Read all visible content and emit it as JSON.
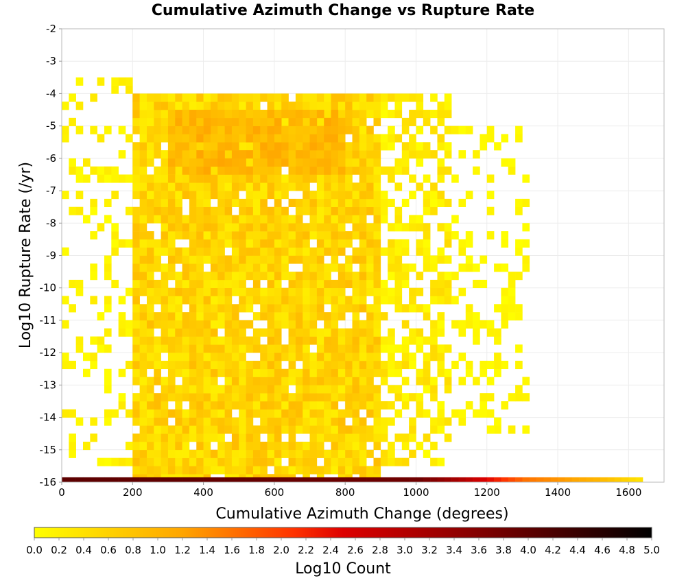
{
  "chart_data": {
    "type": "heatmap",
    "title": "Cumulative Azimuth Change vs Rupture Rate",
    "xlabel": "Cumulative Azimuth Change (degrees)",
    "ylabel": "Log10 Rupture Rate (/yr)",
    "xlim": [
      0,
      1700
    ],
    "ylim": [
      -16,
      -2
    ],
    "x_ticks": [
      "0",
      "200",
      "400",
      "600",
      "800",
      "1000",
      "1200",
      "1400",
      "1600"
    ],
    "y_ticks": [
      "-2",
      "-3",
      "-4",
      "-5",
      "-6",
      "-7",
      "-8",
      "-9",
      "-10",
      "-11",
      "-12",
      "-13",
      "-14",
      "-15",
      "-16"
    ],
    "grid": true,
    "colorbar": {
      "label": "Log10 Count",
      "range": [
        0.0,
        5.0
      ],
      "ticks": [
        "0.0",
        "0.2",
        "0.4",
        "0.6",
        "0.8",
        "1.0",
        "1.2",
        "1.4",
        "1.6",
        "1.8",
        "2.0",
        "2.2",
        "2.4",
        "2.6",
        "2.8",
        "3.0",
        "3.2",
        "3.4",
        "3.6",
        "3.8",
        "4.0",
        "4.2",
        "4.4",
        "4.6",
        "4.8",
        "5.0"
      ],
      "colormap": [
        "#ffff00",
        "#ffa500",
        "#ff0000",
        "#8b0000",
        "#000000"
      ]
    },
    "bin_width_x": 20,
    "bin_height_y": 0.25,
    "density_regions": [
      {
        "x_range": [
          0,
          200
        ],
        "y_range": [
          -15.5,
          -3.5
        ],
        "log10_count_level": [
          0.0,
          0.3
        ],
        "fill": "sparse"
      },
      {
        "x_range": [
          200,
          900
        ],
        "y_range": [
          -16,
          -4
        ],
        "log10_count_level": [
          0.2,
          0.9
        ],
        "fill": "dense"
      },
      {
        "x_range": [
          300,
          800
        ],
        "y_range": [
          -6.5,
          -4.5
        ],
        "log10_count_level": [
          0.7,
          1.2
        ],
        "fill": "dense"
      },
      {
        "x_range": [
          900,
          1100
        ],
        "y_range": [
          -15.5,
          -4
        ],
        "log10_count_level": [
          0.0,
          0.5
        ],
        "fill": "moderate"
      },
      {
        "x_range": [
          1100,
          1320
        ],
        "y_range": [
          -14.5,
          -5
        ],
        "log10_count_level": [
          0.0,
          0.2
        ],
        "fill": "sparse"
      }
    ],
    "bottom_row": {
      "y": -16,
      "x_range": [
        0,
        1640
      ],
      "log10_count_profile": [
        {
          "x": 0,
          "value": 4.0
        },
        {
          "x": 1000,
          "value": 3.8
        },
        {
          "x": 1100,
          "value": 3.2
        },
        {
          "x": 1200,
          "value": 2.4
        },
        {
          "x": 1300,
          "value": 1.6
        },
        {
          "x": 1400,
          "value": 1.3
        },
        {
          "x": 1500,
          "value": 1.0
        },
        {
          "x": 1640,
          "value": 0.3
        }
      ]
    }
  }
}
